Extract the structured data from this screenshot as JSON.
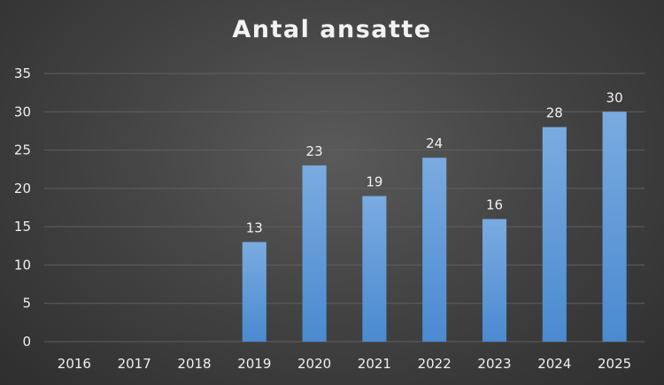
{
  "chart_data": {
    "type": "bar",
    "title": "Antal ansatte",
    "categories": [
      "2016",
      "2017",
      "2018",
      "2019",
      "2020",
      "2021",
      "2022",
      "2023",
      "2024",
      "2025"
    ],
    "values": [
      0,
      0,
      0,
      13,
      23,
      19,
      24,
      16,
      28,
      30
    ],
    "data_labels": [
      "",
      "",
      "",
      "13",
      "23",
      "19",
      "24",
      "16",
      "28",
      "30"
    ],
    "yticks": [
      "0",
      "5",
      "10",
      "15",
      "20",
      "25",
      "30",
      "35"
    ],
    "ylim": [
      0,
      35
    ],
    "xlabel": "",
    "ylabel": "",
    "grid": true,
    "legend": "none",
    "colors": {
      "bar_top": "#7aabe0",
      "bar_bottom": "#4a8ad0",
      "grid": "#5f5f5f",
      "text": "#f0f0f0"
    }
  }
}
